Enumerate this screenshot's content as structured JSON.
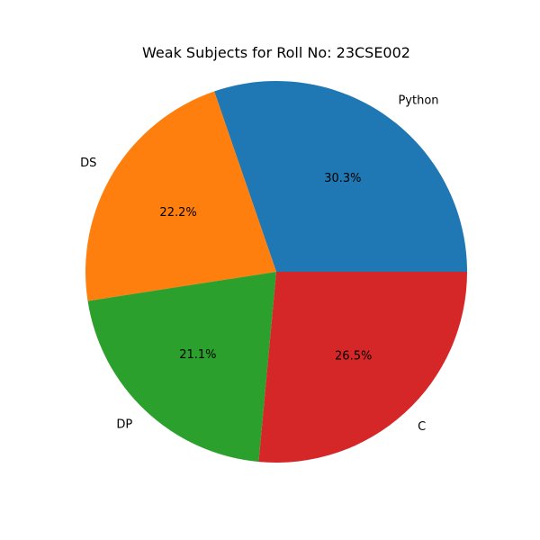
{
  "chart_data": {
    "type": "pie",
    "title": "Weak Subjects for Roll No: 23CSE002",
    "categories": [
      "Python",
      "DS",
      "DP",
      "C"
    ],
    "values": [
      30.3,
      22.2,
      21.1,
      26.5
    ],
    "percent_labels": [
      "30.3%",
      "22.2%",
      "21.1%",
      "26.5%"
    ],
    "colors": [
      "#1f77b4",
      "#ff7f0e",
      "#2ca02c",
      "#d62728"
    ],
    "start_angle_deg": 0,
    "direction": "counterclockwise"
  }
}
